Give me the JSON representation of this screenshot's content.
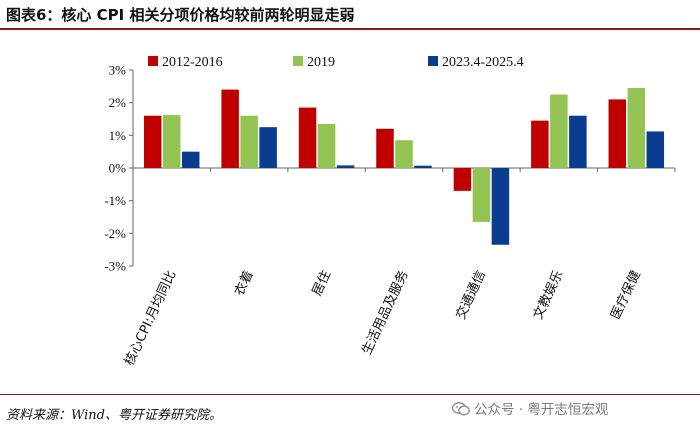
{
  "figure": {
    "title": "图表6：核心 CPI 相关分项价格均较前两轮明显走弱",
    "source": "资料来源：Wind、粤开证券研究院。",
    "watermark": "公众号 · 粤开志恒宏观"
  },
  "colors": {
    "series_2012_2016": "#c00000",
    "series_2019": "#92c353",
    "series_2023_2025": "#0a3d8f",
    "rule": "#8b1a1a"
  },
  "chart_data": {
    "type": "bar",
    "title": "核心 CPI 相关分项价格均较前两轮明显走弱",
    "xlabel": "",
    "ylabel": "",
    "ylim": [
      -3,
      3
    ],
    "y_ticks": [
      3,
      2,
      1,
      0,
      -1,
      -2,
      -3
    ],
    "y_tick_labels": [
      "3%",
      "2%",
      "1%",
      "0%",
      "-1%",
      "-2%",
      "-3%"
    ],
    "legend_position": "top",
    "categories": [
      "核心CPI:月均同比",
      "衣着",
      "居住",
      "生活用品及服务",
      "交通通信",
      "文教娱乐",
      "医疗保健"
    ],
    "series": [
      {
        "name": "2012-2016",
        "values": [
          1.6,
          2.4,
          1.85,
          1.2,
          -0.7,
          1.45,
          2.1
        ]
      },
      {
        "name": "2019",
        "values": [
          1.62,
          1.6,
          1.35,
          0.85,
          -1.65,
          2.25,
          2.45
        ]
      },
      {
        "name": "2023.4-2025.4",
        "values": [
          0.5,
          1.25,
          0.08,
          0.07,
          -2.35,
          1.6,
          1.12
        ]
      }
    ]
  }
}
